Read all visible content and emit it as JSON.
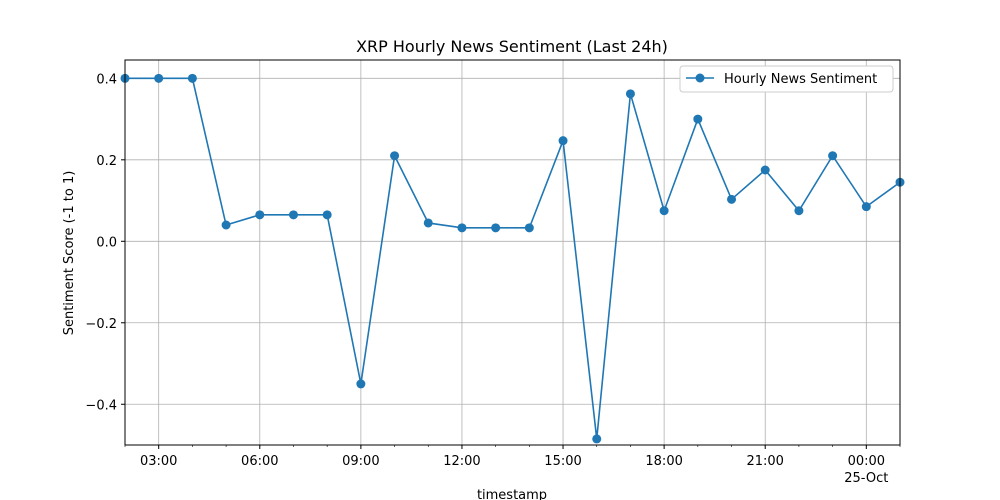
{
  "chart_data": {
    "type": "line",
    "title": "XRP Hourly News Sentiment (Last 24h)",
    "xlabel": "timestamp",
    "ylabel": "Sentiment Score (-1 to 1)",
    "ylim": [
      -0.5,
      0.445
    ],
    "yticks": [
      0.4,
      0.2,
      0.0,
      -0.2,
      -0.4
    ],
    "ytick_labels": [
      "0.4",
      "0.2",
      "0.0",
      "−0.2",
      "−0.4"
    ],
    "xlim": [
      "2024-10-24 02:00",
      "2024-10-25 01:00"
    ],
    "xticks": [
      "03:00",
      "06:00",
      "09:00",
      "12:00",
      "15:00",
      "18:00",
      "21:00",
      "00:00"
    ],
    "xtick_sublabel": "25-Oct",
    "grid": true,
    "legend_position": "upper right",
    "color": "#1f77b4",
    "series": [
      {
        "name": "Hourly News Sentiment",
        "x": [
          "02:00",
          "03:00",
          "04:00",
          "05:00",
          "06:00",
          "07:00",
          "08:00",
          "09:00",
          "10:00",
          "11:00",
          "12:00",
          "13:00",
          "14:00",
          "15:00",
          "16:00",
          "17:00",
          "18:00",
          "19:00",
          "20:00",
          "21:00",
          "22:00",
          "23:00",
          "00:00",
          "01:00"
        ],
        "values": [
          0.4,
          0.4,
          0.4,
          0.04,
          0.065,
          0.065,
          0.065,
          -0.35,
          0.21,
          0.045,
          0.033,
          0.033,
          0.033,
          0.247,
          -0.485,
          0.362,
          0.075,
          0.3,
          0.103,
          0.175,
          0.075,
          0.21,
          0.085,
          0.145
        ]
      }
    ]
  }
}
